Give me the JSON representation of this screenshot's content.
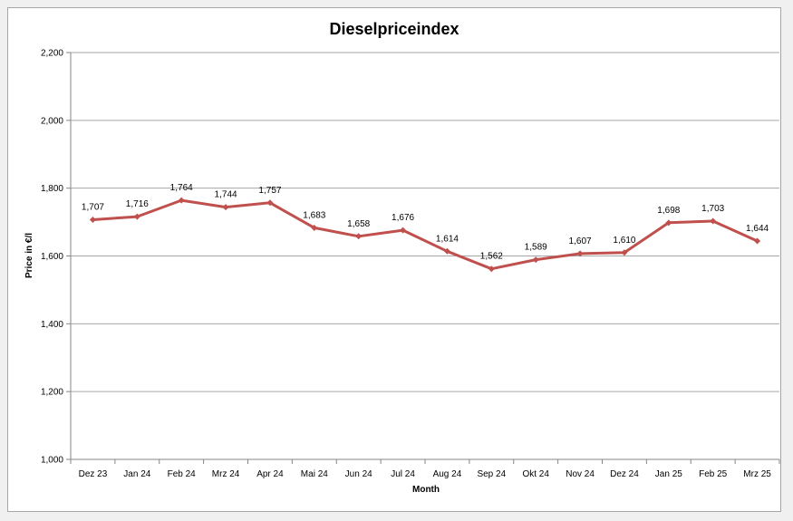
{
  "chart_data": {
    "type": "line",
    "title": "Dieselpriceindex",
    "xlabel": "Month",
    "ylabel": "Price in €/l",
    "categories": [
      "Dez 23",
      "Jan 24",
      "Feb 24",
      "Mrz 24",
      "Apr 24",
      "Mai 24",
      "Jun 24",
      "Jul 24",
      "Aug 24",
      "Sep 24",
      "Okt 24",
      "Nov 24",
      "Dez 24",
      "Jan 25",
      "Feb 25",
      "Mrz 25"
    ],
    "series": [
      {
        "values": [
          1.707,
          1.716,
          1.764,
          1.744,
          1.757,
          1.683,
          1.658,
          1.676,
          1.614,
          1.562,
          1.589,
          1.607,
          1.61,
          1.698,
          1.703,
          1.644
        ],
        "labels": [
          "1,707",
          "1,716",
          "1,764",
          "1,744",
          "1,757",
          "1,683",
          "1,658",
          "1,676",
          "1,614",
          "1,562",
          "1,589",
          "1,607",
          "1,610",
          "1,698",
          "1,703",
          "1,644"
        ],
        "color": "#c0504d"
      }
    ],
    "ylim": [
      1.0,
      2.2
    ],
    "yticks": [
      1.0,
      1.2,
      1.4,
      1.6,
      1.8,
      2.0,
      2.2
    ],
    "ytick_labels": [
      "1,000",
      "1,200",
      "1,400",
      "1,600",
      "1,800",
      "2,000",
      "2,200"
    ],
    "grid": true,
    "legend": "none",
    "gridline_color": "#a6a6a6"
  }
}
